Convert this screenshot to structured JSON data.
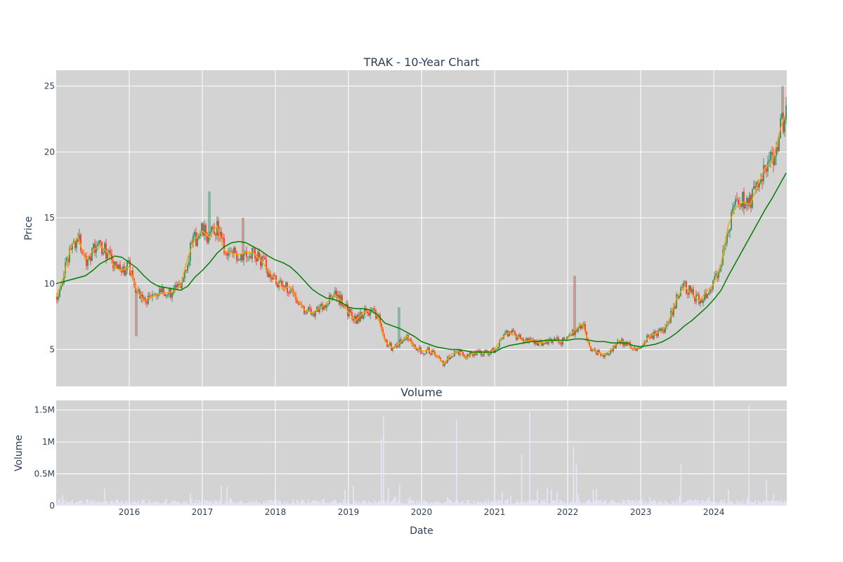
{
  "chart_data": {
    "type": "candlestick",
    "title": "TRAK - 10-Year Chart",
    "price_panel": {
      "ylabel": "Price",
      "yticks": [
        5,
        10,
        15,
        20,
        25
      ],
      "ylim": [
        2.2,
        26.2
      ],
      "grid": true
    },
    "volume_panel": {
      "title": "Volume",
      "ylabel": "Volume",
      "ytick_values": [
        0,
        500000,
        1000000,
        1500000
      ],
      "ytick_labels": [
        "0",
        "0.5M",
        "1M",
        "1.5M"
      ],
      "ylim": [
        0,
        1650000
      ],
      "grid": true
    },
    "xlabel": "Date",
    "xticks": [
      "2016",
      "2017",
      "2018",
      "2019",
      "2020",
      "2021",
      "2022",
      "2023",
      "2024"
    ],
    "xlim": [
      "2015-01-01",
      "2024-12-31"
    ],
    "colors": {
      "background": "#d3d3d3",
      "increasing": "#3d9970",
      "decreasing": "#ff4136",
      "ma_short": "#ffa500",
      "ma_long": "#008000",
      "volume": "#e6e6fa",
      "grid": "#ffffff",
      "text": "#2a3f5f"
    },
    "series": [
      {
        "style": "ma_short",
        "values": [
          [
            2015.0,
            9.0
          ],
          [
            2015.1,
            10.5
          ],
          [
            2015.2,
            12.8
          ],
          [
            2015.3,
            13.5
          ],
          [
            2015.4,
            11.8
          ],
          [
            2015.5,
            12.5
          ],
          [
            2015.6,
            12.9
          ],
          [
            2015.7,
            12.4
          ],
          [
            2015.8,
            11.2
          ],
          [
            2015.9,
            11.0
          ],
          [
            2016.0,
            11.3
          ],
          [
            2016.1,
            9.5
          ],
          [
            2016.2,
            8.7
          ],
          [
            2016.3,
            9.0
          ],
          [
            2016.4,
            9.2
          ],
          [
            2016.5,
            9.3
          ],
          [
            2016.6,
            9.4
          ],
          [
            2016.7,
            9.8
          ],
          [
            2016.8,
            12.0
          ],
          [
            2016.9,
            13.4
          ],
          [
            2017.0,
            14.0
          ],
          [
            2017.1,
            13.5
          ],
          [
            2017.2,
            14.4
          ],
          [
            2017.3,
            12.5
          ],
          [
            2017.4,
            12.3
          ],
          [
            2017.5,
            12.2
          ],
          [
            2017.6,
            12.4
          ],
          [
            2017.7,
            12.3
          ],
          [
            2017.8,
            11.8
          ],
          [
            2017.9,
            11.0
          ],
          [
            2018.0,
            10.3
          ],
          [
            2018.1,
            9.6
          ],
          [
            2018.2,
            9.8
          ],
          [
            2018.3,
            8.8
          ],
          [
            2018.4,
            8.0
          ],
          [
            2018.5,
            7.8
          ],
          [
            2018.6,
            8.1
          ],
          [
            2018.7,
            8.5
          ],
          [
            2018.8,
            9.2
          ],
          [
            2018.9,
            8.7
          ],
          [
            2019.0,
            7.8
          ],
          [
            2019.1,
            7.2
          ],
          [
            2019.2,
            7.8
          ],
          [
            2019.3,
            8.0
          ],
          [
            2019.4,
            7.5
          ],
          [
            2019.5,
            5.6
          ],
          [
            2019.6,
            5.1
          ],
          [
            2019.7,
            5.5
          ],
          [
            2019.8,
            6.0
          ],
          [
            2019.9,
            5.2
          ],
          [
            2020.0,
            4.9
          ],
          [
            2020.1,
            4.9
          ],
          [
            2020.2,
            4.6
          ],
          [
            2020.3,
            3.9
          ],
          [
            2020.4,
            4.6
          ],
          [
            2020.5,
            4.9
          ],
          [
            2020.6,
            4.3
          ],
          [
            2020.7,
            4.7
          ],
          [
            2020.8,
            4.8
          ],
          [
            2020.9,
            4.7
          ],
          [
            2021.0,
            5.0
          ],
          [
            2021.1,
            5.9
          ],
          [
            2021.2,
            6.3
          ],
          [
            2021.3,
            6.0
          ],
          [
            2021.4,
            5.6
          ],
          [
            2021.5,
            5.7
          ],
          [
            2021.6,
            5.5
          ],
          [
            2021.7,
            5.6
          ],
          [
            2021.8,
            5.7
          ],
          [
            2021.9,
            5.6
          ],
          [
            2022.0,
            5.8
          ],
          [
            2022.1,
            6.5
          ],
          [
            2022.2,
            7.0
          ],
          [
            2022.3,
            5.2
          ],
          [
            2022.4,
            4.8
          ],
          [
            2022.5,
            4.6
          ],
          [
            2022.6,
            5.0
          ],
          [
            2022.7,
            5.7
          ],
          [
            2022.8,
            5.5
          ],
          [
            2022.9,
            5.0
          ],
          [
            2023.0,
            5.2
          ],
          [
            2023.1,
            5.9
          ],
          [
            2023.2,
            6.2
          ],
          [
            2023.3,
            6.4
          ],
          [
            2023.4,
            7.4
          ],
          [
            2023.5,
            9.0
          ],
          [
            2023.6,
            9.8
          ],
          [
            2023.7,
            9.2
          ],
          [
            2023.8,
            8.7
          ],
          [
            2023.9,
            9.4
          ],
          [
            2024.0,
            10.0
          ],
          [
            2024.1,
            11.5
          ],
          [
            2024.2,
            14.5
          ],
          [
            2024.3,
            15.8
          ],
          [
            2024.4,
            16.2
          ],
          [
            2024.5,
            16.0
          ],
          [
            2024.6,
            17.5
          ],
          [
            2024.7,
            18.8
          ],
          [
            2024.8,
            19.2
          ],
          [
            2024.9,
            21.5
          ],
          [
            2024.97,
            22.8
          ]
        ]
      },
      {
        "style": "ma_long",
        "values": [
          [
            2015.0,
            10.0
          ],
          [
            2015.2,
            10.3
          ],
          [
            2015.4,
            10.6
          ],
          [
            2015.5,
            11.0
          ],
          [
            2015.6,
            11.5
          ],
          [
            2015.8,
            12.1
          ],
          [
            2015.9,
            12.0
          ],
          [
            2016.0,
            11.6
          ],
          [
            2016.1,
            11.2
          ],
          [
            2016.2,
            10.6
          ],
          [
            2016.3,
            10.1
          ],
          [
            2016.4,
            9.8
          ],
          [
            2016.6,
            9.6
          ],
          [
            2016.7,
            9.5
          ],
          [
            2016.8,
            9.8
          ],
          [
            2016.9,
            10.5
          ],
          [
            2017.0,
            11.0
          ],
          [
            2017.1,
            11.6
          ],
          [
            2017.2,
            12.3
          ],
          [
            2017.3,
            12.8
          ],
          [
            2017.4,
            13.1
          ],
          [
            2017.5,
            13.2
          ],
          [
            2017.6,
            13.1
          ],
          [
            2017.7,
            12.8
          ],
          [
            2017.8,
            12.5
          ],
          [
            2017.9,
            12.1
          ],
          [
            2018.0,
            11.8
          ],
          [
            2018.1,
            11.6
          ],
          [
            2018.2,
            11.3
          ],
          [
            2018.3,
            10.8
          ],
          [
            2018.4,
            10.2
          ],
          [
            2018.5,
            9.6
          ],
          [
            2018.6,
            9.2
          ],
          [
            2018.7,
            8.9
          ],
          [
            2018.8,
            8.8
          ],
          [
            2018.9,
            8.6
          ],
          [
            2019.0,
            8.2
          ],
          [
            2019.1,
            8.1
          ],
          [
            2019.2,
            8.1
          ],
          [
            2019.3,
            8.0
          ],
          [
            2019.4,
            7.6
          ],
          [
            2019.5,
            7.0
          ],
          [
            2019.6,
            6.8
          ],
          [
            2019.7,
            6.6
          ],
          [
            2019.8,
            6.3
          ],
          [
            2019.9,
            6.0
          ],
          [
            2020.0,
            5.6
          ],
          [
            2020.1,
            5.4
          ],
          [
            2020.2,
            5.2
          ],
          [
            2020.3,
            5.1
          ],
          [
            2020.4,
            5.0
          ],
          [
            2020.5,
            5.0
          ],
          [
            2020.6,
            4.9
          ],
          [
            2020.7,
            4.8
          ],
          [
            2020.8,
            4.8
          ],
          [
            2020.9,
            4.8
          ],
          [
            2021.0,
            4.8
          ],
          [
            2021.1,
            5.1
          ],
          [
            2021.2,
            5.3
          ],
          [
            2021.3,
            5.4
          ],
          [
            2021.4,
            5.5
          ],
          [
            2021.5,
            5.6
          ],
          [
            2021.6,
            5.6
          ],
          [
            2021.7,
            5.7
          ],
          [
            2021.8,
            5.7
          ],
          [
            2021.9,
            5.7
          ],
          [
            2022.0,
            5.7
          ],
          [
            2022.1,
            5.8
          ],
          [
            2022.2,
            5.8
          ],
          [
            2022.3,
            5.7
          ],
          [
            2022.4,
            5.6
          ],
          [
            2022.5,
            5.6
          ],
          [
            2022.6,
            5.5
          ],
          [
            2022.7,
            5.5
          ],
          [
            2022.8,
            5.5
          ],
          [
            2022.9,
            5.3
          ],
          [
            2023.0,
            5.2
          ],
          [
            2023.1,
            5.3
          ],
          [
            2023.2,
            5.4
          ],
          [
            2023.3,
            5.6
          ],
          [
            2023.4,
            5.9
          ],
          [
            2023.5,
            6.3
          ],
          [
            2023.6,
            6.8
          ],
          [
            2023.7,
            7.2
          ],
          [
            2023.8,
            7.7
          ],
          [
            2023.9,
            8.2
          ],
          [
            2024.0,
            8.8
          ],
          [
            2024.1,
            9.5
          ],
          [
            2024.2,
            10.6
          ],
          [
            2024.3,
            11.6
          ],
          [
            2024.4,
            12.6
          ],
          [
            2024.5,
            13.6
          ],
          [
            2024.6,
            14.6
          ],
          [
            2024.7,
            15.6
          ],
          [
            2024.8,
            16.5
          ],
          [
            2024.9,
            17.5
          ],
          [
            2024.99,
            18.4
          ]
        ]
      }
    ]
  }
}
